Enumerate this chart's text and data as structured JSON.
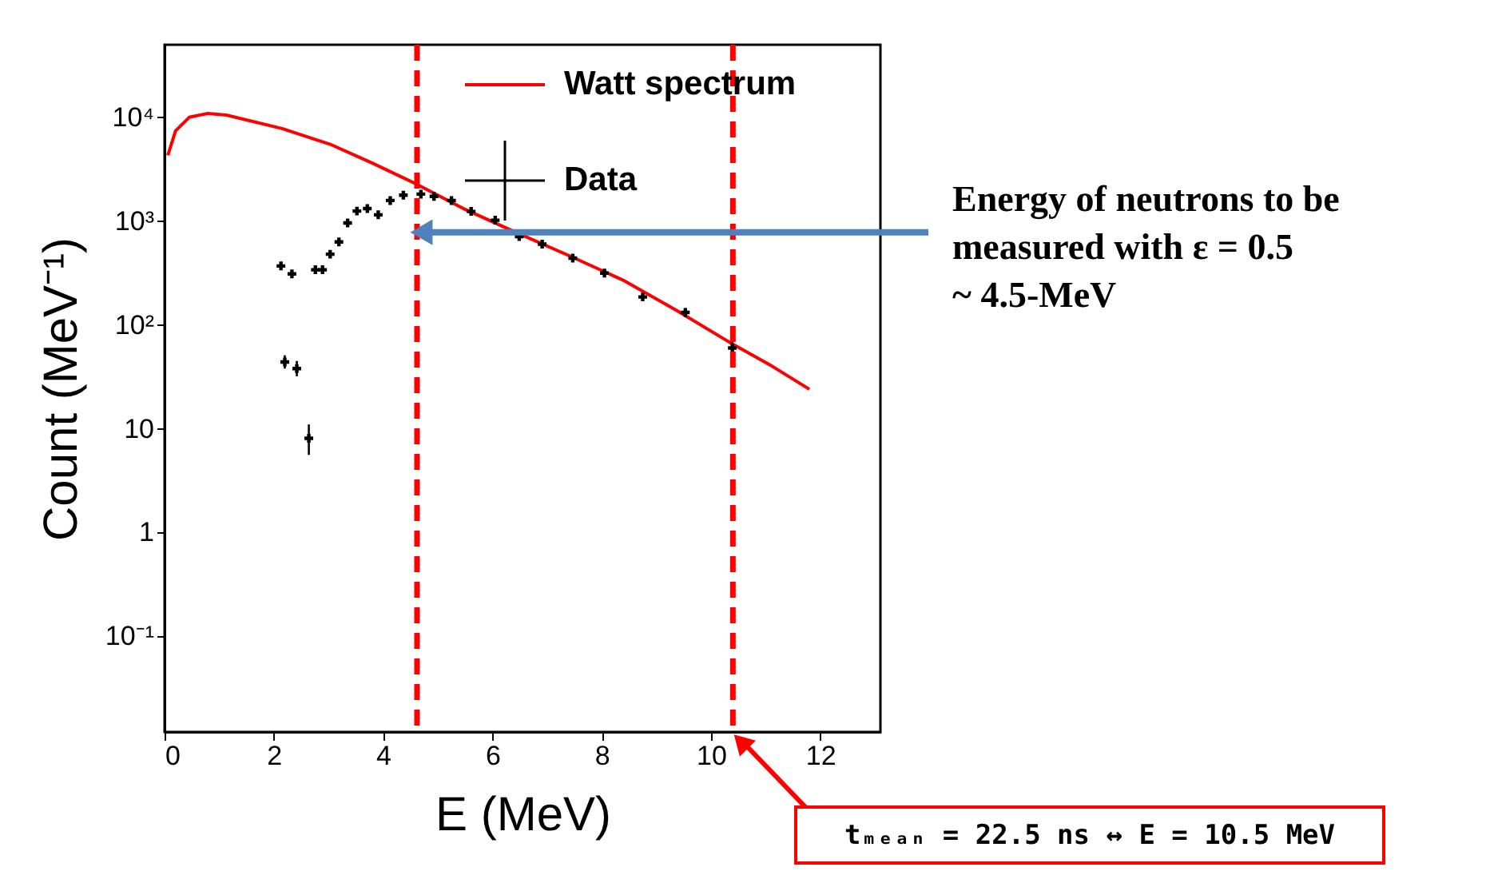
{
  "chart_data": {
    "type": "line",
    "xlabel": "E (MeV)",
    "ylabel": "Count (MeV⁻¹)",
    "log": "y",
    "xlim": [
      0,
      13.1
    ],
    "ylim": [
      0.012,
      50000
    ],
    "xticks": [
      0,
      2,
      4,
      6,
      8,
      10,
      12
    ],
    "yticks": [
      {
        "value": 0.1,
        "label": "10⁻¹"
      },
      1,
      10,
      {
        "value": 100,
        "label": "10²"
      },
      {
        "value": 1000,
        "label": "10³"
      },
      {
        "value": 10000,
        "label": "10⁴"
      }
    ],
    "grid": false,
    "legend": "top right",
    "series": [
      {
        "name": "Watt spectrum",
        "color": "#ff0000",
        "marker": "none",
        "line_style": "solid",
        "x": [
          0.06,
          0.2,
          0.45,
          0.79,
          1.13,
          2.15,
          3.03,
          3.81,
          4.59,
          5.47,
          6.44,
          7.42,
          8.39,
          9.37,
          10.34,
          11.12,
          11.8
        ],
        "values": [
          4300,
          7400,
          10000,
          10900,
          10500,
          7800,
          5500,
          3600,
          2300,
          1320,
          775,
          460,
          270,
          138,
          68,
          40,
          24
        ]
      },
      {
        "name": "Data",
        "type": "scatter",
        "color": "#000000",
        "marker": "cross",
        "x": [
          2.13,
          2.2,
          2.33,
          2.42,
          2.64,
          2.76,
          2.89,
          3.03,
          3.19,
          3.35,
          3.52,
          3.71,
          3.91,
          4.13,
          4.37,
          4.69,
          4.93,
          5.25,
          5.61,
          6.05,
          6.49,
          6.91,
          7.47,
          8.05,
          8.75,
          9.53,
          10.39
        ],
        "values": [
          370,
          44,
          310,
          38,
          8.1,
          340,
          340,
          480,
          630,
          960,
          1250,
          1320,
          1150,
          1580,
          1780,
          1820,
          1730,
          1580,
          1240,
          1020,
          710,
          600,
          440,
          316,
          186,
          132,
          60
        ],
        "errors": [
          [
            340,
            400
          ],
          [
            38,
            51
          ],
          [
            285,
            335
          ],
          [
            32,
            45
          ],
          [
            5.6,
            11
          ],
          [
            315,
            365
          ],
          [
            315,
            365
          ],
          [
            450,
            515
          ],
          [
            590,
            670
          ],
          [
            910,
            1010
          ],
          [
            1190,
            1310
          ],
          [
            1260,
            1380
          ],
          [
            1100,
            1200
          ],
          [
            1510,
            1650
          ],
          [
            1710,
            1850
          ],
          [
            1750,
            1890
          ],
          [
            1660,
            1800
          ],
          [
            1510,
            1650
          ],
          [
            1180,
            1300
          ],
          [
            970,
            1070
          ],
          [
            670,
            750
          ],
          [
            565,
            635
          ],
          [
            410,
            470
          ],
          [
            295,
            338
          ],
          [
            172,
            200
          ],
          [
            120,
            145
          ],
          [
            53,
            68
          ]
        ]
      }
    ],
    "ref_lines": [
      {
        "axis": "x",
        "value": 4.62,
        "color": "#ff0000",
        "line_style": "dashed"
      },
      {
        "axis": "x",
        "value": 10.4,
        "color": "#ff0000",
        "line_style": "dashed"
      }
    ],
    "annotations": [
      {
        "text": "Energy of neutrons to be\nmeasured with ε = 0.5\n~ 4.5-MeV",
        "x": 4.7,
        "y": 780
      },
      "tₘₑₐₙ = 22.5 ns ↔ E = 10.5 MeV"
    ]
  }
}
